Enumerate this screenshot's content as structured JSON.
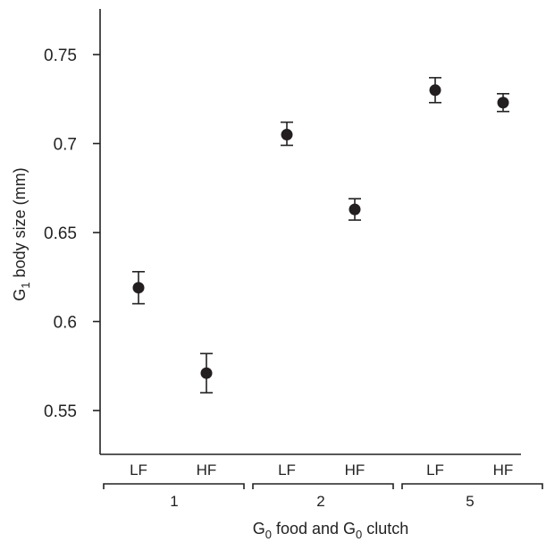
{
  "chart_data": {
    "type": "scatter",
    "title": "",
    "xlabel": {
      "pre": "G",
      "pre_sub": "0",
      "mid": " food and G",
      "mid_sub": "0",
      "post": " clutch"
    },
    "ylabel": {
      "pre": "G",
      "pre_sub": "1",
      "post": " body size (mm)"
    },
    "ylim": [
      0.515,
      0.775
    ],
    "yticks": [
      "0.55",
      "0.6",
      "0.65",
      "0.7",
      "0.75"
    ],
    "ytick_values": [
      0.55,
      0.6,
      0.65,
      0.7,
      0.75
    ],
    "groups": [
      "1",
      "2",
      "5"
    ],
    "categories": [
      "LF",
      "HF",
      "LF",
      "HF",
      "LF",
      "HF"
    ],
    "values": [
      0.619,
      0.571,
      0.705,
      0.663,
      0.73,
      0.723
    ],
    "err_low": [
      0.61,
      0.56,
      0.699,
      0.657,
      0.723,
      0.718
    ],
    "err_high": [
      0.628,
      0.582,
      0.712,
      0.669,
      0.737,
      0.728
    ],
    "grid": false,
    "legend": "none",
    "marker_color": "#231f20"
  }
}
